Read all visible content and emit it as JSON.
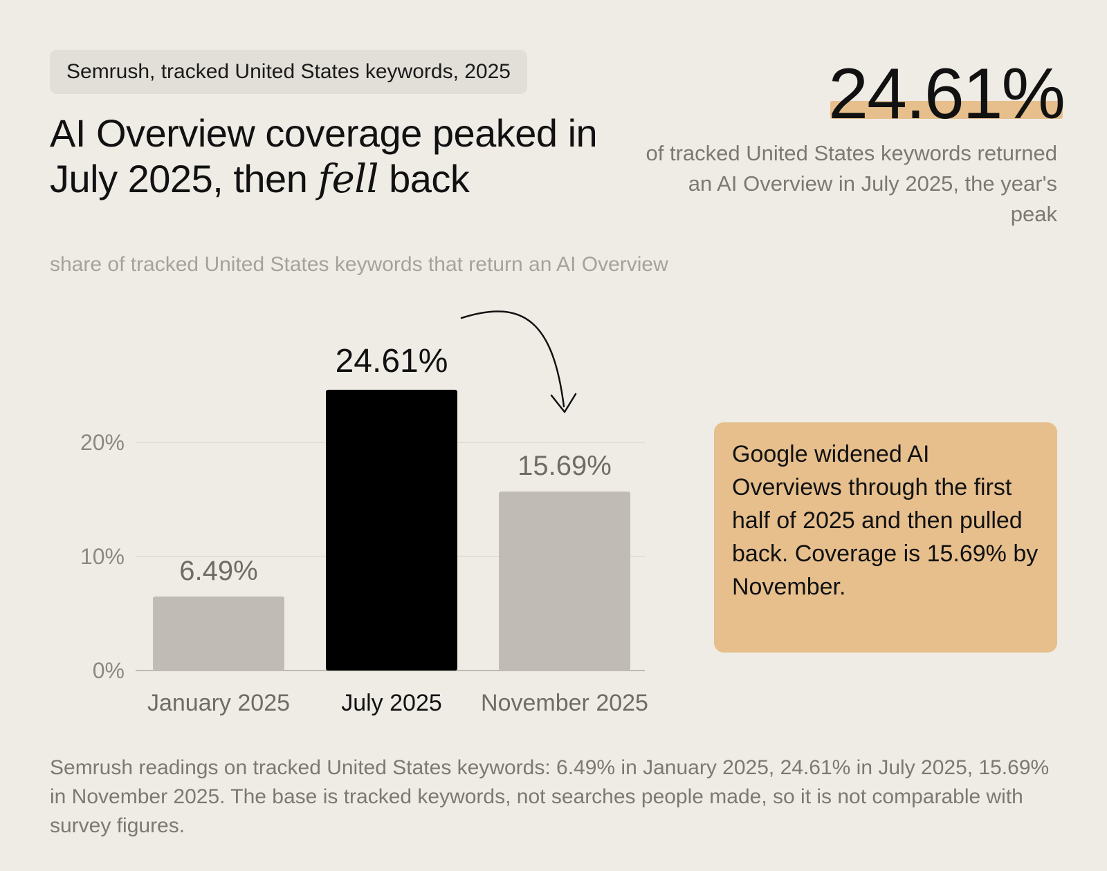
{
  "source_tag": "Semrush, tracked United States keywords, 2025",
  "headline": {
    "part1": "AI Overview coverage peaked in July 2025, then ",
    "emphasis": "fell",
    "part2": " back"
  },
  "stat": {
    "value": "24.61%",
    "caption": "of tracked United States keywords returned an AI Overview in July 2025, the year's peak"
  },
  "chart_subtitle": "share of tracked United States keywords that return an AI Overview",
  "chart_data": {
    "type": "bar",
    "categories": [
      "January 2025",
      "July 2025",
      "November 2025"
    ],
    "values": [
      6.49,
      24.61,
      15.69
    ],
    "value_labels": [
      "6.49%",
      "24.61%",
      "15.69%"
    ],
    "highlight_index": 1,
    "ylim": [
      0,
      25
    ],
    "yticks": [
      0,
      10,
      20
    ],
    "ytick_labels": [
      "0%",
      "10%",
      "20%"
    ],
    "grid": true,
    "colors": {
      "default_bar": "#c0bcb5",
      "highlight_bar": "#000000"
    }
  },
  "note": "Google widened AI Overviews through the first half of 2025 and then pulled back. Coverage is 15.69% by November.",
  "footnote": "Semrush readings on tracked United States keywords: 6.49% in January 2025, 24.61% in July 2025, 15.69% in November 2025. The base is tracked keywords, not searches people made, so it is not comparable with survey figures."
}
